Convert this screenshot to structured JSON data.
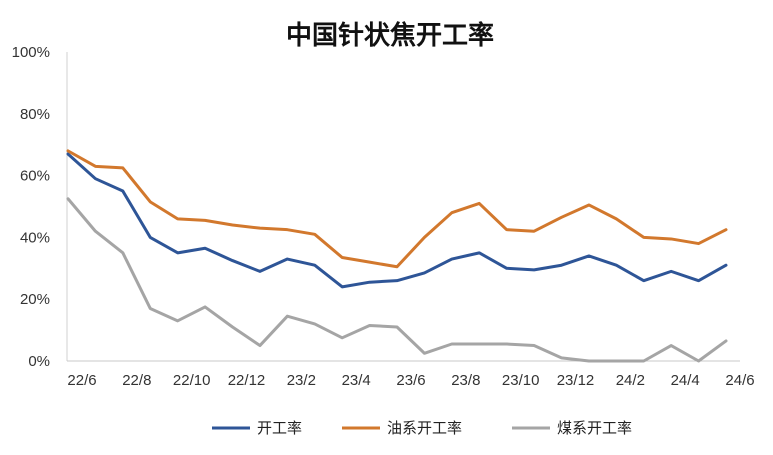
{
  "chart_data": {
    "type": "line",
    "title": "中国针状焦开工率",
    "xlabel": "",
    "ylabel": "",
    "ylim": [
      0,
      100
    ],
    "y_ticks": [
      "100%",
      "80%",
      "60%",
      "40%",
      "20%",
      "0%"
    ],
    "x_tick_labels": [
      "22/6",
      "22/8",
      "22/10",
      "22/12",
      "23/2",
      "23/4",
      "23/6",
      "23/8",
      "23/10",
      "23/12",
      "24/2",
      "24/4",
      "24/6"
    ],
    "x": [
      "22/6",
      "22/7",
      "22/8",
      "22/9",
      "22/10",
      "22/11",
      "22/12",
      "23/1",
      "23/2",
      "23/3",
      "23/4",
      "23/5",
      "23/6",
      "23/7",
      "23/8",
      "23/9",
      "23/10",
      "23/11",
      "23/12",
      "24/1",
      "24/2",
      "24/3",
      "24/4",
      "24/5",
      "24/6"
    ],
    "grid": false,
    "legend_position": "bottom",
    "series": [
      {
        "name": "开工率",
        "color": "#2e5597",
        "values": [
          67,
          59,
          55,
          40,
          35,
          36.5,
          32.5,
          29,
          33,
          31,
          24,
          25.5,
          26,
          28.5,
          33,
          35,
          30,
          29.5,
          31,
          34,
          31,
          26,
          29,
          26,
          31
        ]
      },
      {
        "name": "油系开工率",
        "color": "#d2782d",
        "values": [
          68,
          63,
          62.5,
          51.5,
          46,
          45.5,
          44,
          43,
          42.5,
          41,
          33.5,
          32,
          30.5,
          40,
          48,
          51,
          42.5,
          42,
          46.5,
          50.5,
          46,
          40,
          39.5,
          38,
          42.5
        ]
      },
      {
        "name": "煤系开工率",
        "color": "#a5a5a5",
        "values": [
          52.5,
          42,
          35,
          17,
          13,
          17.5,
          11,
          5,
          14.5,
          12,
          7.5,
          11.5,
          11,
          2.5,
          5.5,
          5.5,
          5.5,
          5,
          1,
          0,
          0,
          0,
          5,
          0,
          6.5
        ]
      }
    ]
  }
}
